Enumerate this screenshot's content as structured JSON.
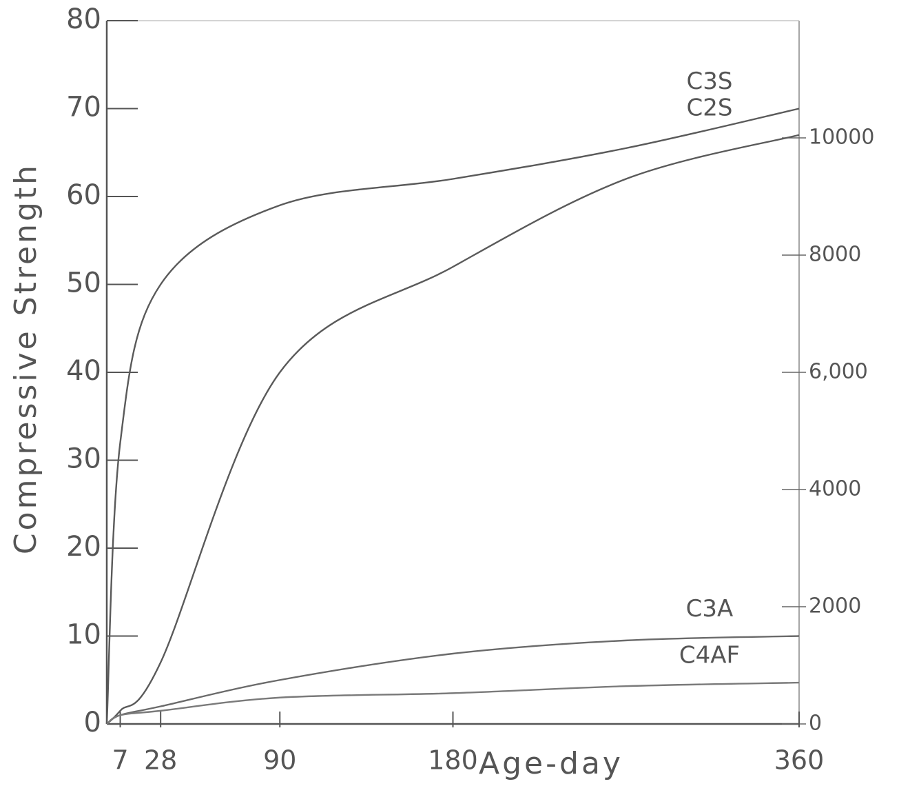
{
  "chart_data": {
    "type": "line",
    "xlabel": "Age-day",
    "ylabel": "Compressive Strength",
    "x": [
      0,
      7,
      28,
      90,
      180,
      270,
      360
    ],
    "xlim": [
      0,
      360
    ],
    "xticks": [
      7,
      28,
      90,
      180,
      360
    ],
    "ylim": [
      0,
      80
    ],
    "yticks": [
      0,
      10,
      20,
      30,
      40,
      50,
      60,
      70,
      80
    ],
    "y2lim": [
      0,
      12000
    ],
    "y2ticks": [
      0,
      2000,
      4000,
      {
        "value": 6000,
        "label": "6,000"
      },
      8000,
      10000
    ],
    "grid": false,
    "series": [
      {
        "name": "C3S",
        "color": "#5a5a5a",
        "values": [
          0,
          32,
          50,
          59,
          62,
          65.5,
          70
        ]
      },
      {
        "name": "C2S",
        "color": "#5a5a5a",
        "values": [
          0,
          1.5,
          7,
          40,
          52,
          62,
          67
        ]
      },
      {
        "name": "C3A",
        "color": "#6a6a6a",
        "values": [
          0,
          1,
          2,
          5,
          8,
          9.5,
          10
        ]
      },
      {
        "name": "C4AF",
        "color": "#7a7a7a",
        "values": [
          0,
          1,
          1.5,
          3,
          3.5,
          4.3,
          4.7
        ]
      }
    ]
  }
}
